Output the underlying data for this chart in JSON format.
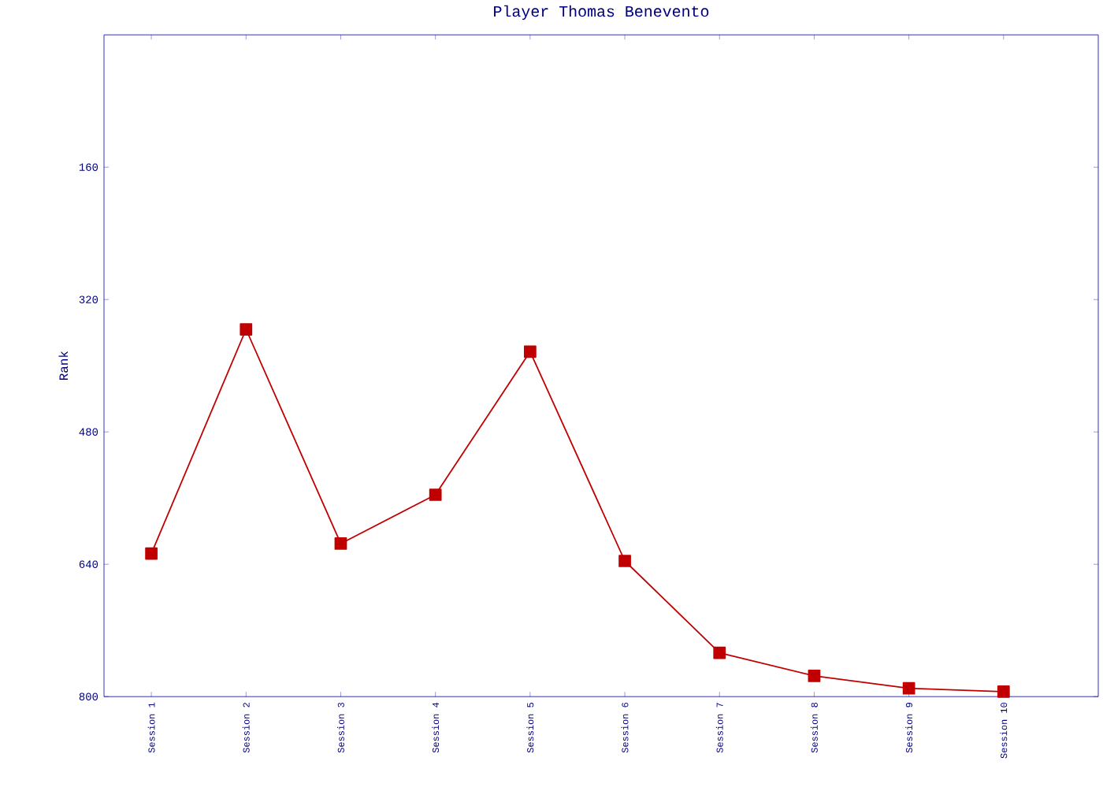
{
  "chart_data": {
    "type": "line",
    "title": "Player Thomas Benevento",
    "ylabel": "Rank",
    "categories": [
      "Session 1",
      "Session 2",
      "Session 3",
      "Session 4",
      "Session 5",
      "Session 6",
      "Session 7",
      "Session 8",
      "Session 9",
      "Session 10"
    ],
    "series": [
      {
        "color": "#c00000",
        "values": [
          627,
          356,
          615,
          556,
          383,
          636,
          747,
          775,
          790,
          794
        ]
      }
    ],
    "ylim": [
      800,
      0
    ],
    "yticks": [
      160,
      320,
      480,
      640,
      800
    ],
    "marker": "square",
    "line_style": "solid",
    "grid": false
  }
}
